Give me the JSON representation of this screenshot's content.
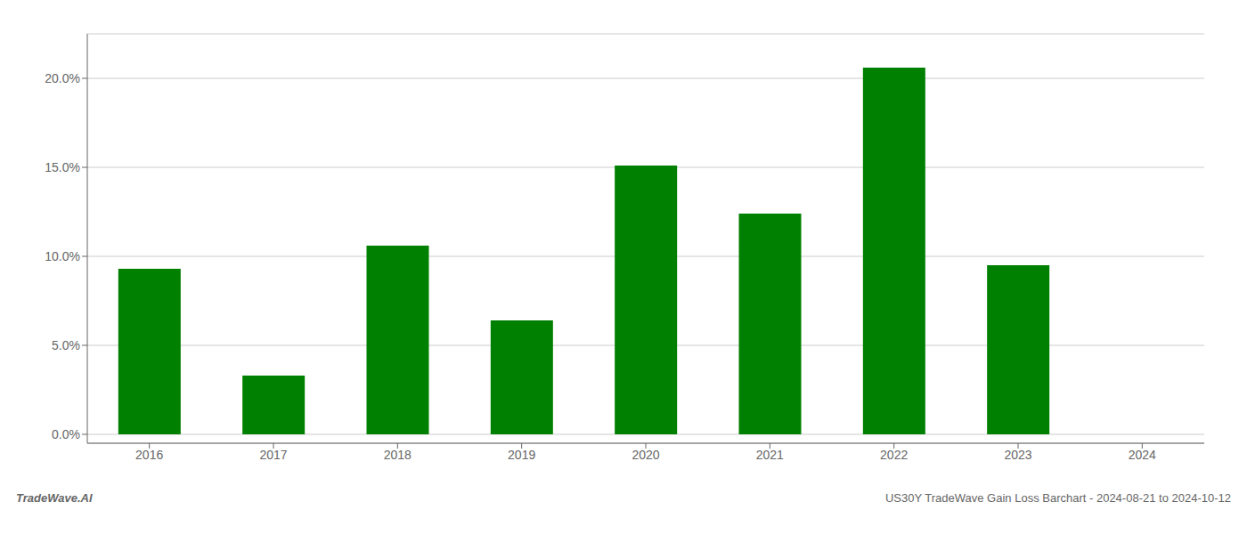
{
  "chart_data": {
    "type": "bar",
    "categories": [
      "2016",
      "2017",
      "2018",
      "2019",
      "2020",
      "2021",
      "2022",
      "2023",
      "2024"
    ],
    "values": [
      0.093,
      0.033,
      0.106,
      0.064,
      0.151,
      0.124,
      0.206,
      0.095,
      null
    ],
    "color": "#008000",
    "ylim": [
      -0.005,
      0.225
    ],
    "yticks": [
      {
        "value": 0.0,
        "label": "0.0%"
      },
      {
        "value": 0.05,
        "label": "5.0%"
      },
      {
        "value": 0.1,
        "label": "10.0%"
      },
      {
        "value": 0.15,
        "label": "15.0%"
      },
      {
        "value": 0.2,
        "label": "20.0%"
      }
    ],
    "grid": true,
    "annotations": [
      "TradeWave.AI",
      "US30Y TradeWave Gain Loss Barchart - 2024-08-21 to 2024-10-12"
    ]
  }
}
